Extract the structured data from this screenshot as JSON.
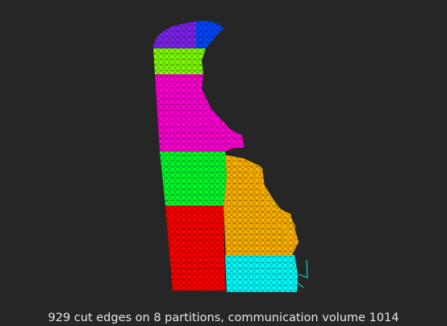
{
  "figure": {
    "caption": "929 cut edges on 8 partitions, communication volume 1014",
    "background": "#262626",
    "caption_color": "#e6e6e6"
  },
  "partitions": [
    {
      "id": 1,
      "color": "#7e22f0",
      "role": "north-west cap"
    },
    {
      "id": 2,
      "color": "#0047ff",
      "role": "north-east cap"
    },
    {
      "id": 3,
      "color": "#80ff00",
      "role": "upper band"
    },
    {
      "id": 4,
      "color": "#ff00d4",
      "role": "upper middle band"
    },
    {
      "id": 5,
      "color": "#00ff2a",
      "role": "middle band"
    },
    {
      "id": 6,
      "color": "#ff0000",
      "role": "lower west"
    },
    {
      "id": 7,
      "color": "#ffb300",
      "role": "lower east"
    },
    {
      "id": 8,
      "color": "#00ffff",
      "role": "south-east"
    }
  ]
}
